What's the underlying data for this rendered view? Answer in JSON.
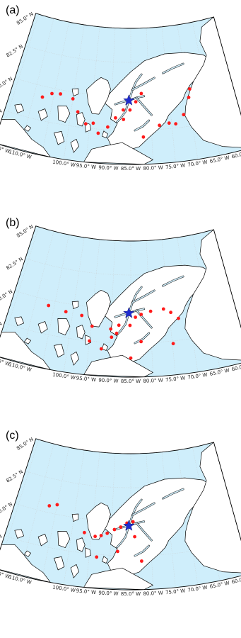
{
  "colors": {
    "ocean": "#cfeefb",
    "land": "#ffffff",
    "coast": "#000000",
    "grid": "#c9c9c9",
    "station": "#ff1a1a",
    "star": "#1f2ccf"
  },
  "labels": {
    "lat_ticks": [
      "85.0° N",
      "82.5° N",
      "80.0° N",
      "77.5° N",
      "75.0° N"
    ],
    "lon_ticks": [
      "115.0° W",
      "110.0° W",
      "100.0° W",
      "95.0° W",
      "90.0° W",
      "85.0° W",
      "80.0° W",
      "75.0° W",
      "70.0° W",
      "65.0° W",
      "60.0° W"
    ]
  },
  "panels": [
    {
      "label": "(a)",
      "star": {
        "lon": -85.5,
        "lat": 79.7
      },
      "stations": [
        {
          "lon": -107.8,
          "lat": 79.2
        },
        {
          "lon": -105.6,
          "lat": 79.6
        },
        {
          "lon": -103.4,
          "lat": 79.7
        },
        {
          "lon": -100.0,
          "lat": 79.5
        },
        {
          "lon": -98.3,
          "lat": 78.6
        },
        {
          "lon": -96.0,
          "lat": 77.8
        },
        {
          "lon": -94.2,
          "lat": 77.9
        },
        {
          "lon": -92.8,
          "lat": 77.2
        },
        {
          "lon": -90.6,
          "lat": 77.7
        },
        {
          "lon": -88.8,
          "lat": 78.4
        },
        {
          "lon": -86.9,
          "lat": 79.0
        },
        {
          "lon": -85.2,
          "lat": 79.0
        },
        {
          "lon": -83.7,
          "lat": 79.6
        },
        {
          "lon": -82.2,
          "lat": 80.2
        },
        {
          "lon": -78.0,
          "lat": 77.8
        },
        {
          "lon": -75.6,
          "lat": 77.9
        },
        {
          "lon": -74.0,
          "lat": 77.8
        },
        {
          "lon": -71.8,
          "lat": 78.4
        },
        {
          "lon": -69.9,
          "lat": 79.6
        },
        {
          "lon": -69.3,
          "lat": 80.2
        },
        {
          "lon": -82.0,
          "lat": 77.0
        },
        {
          "lon": -86.8,
          "lat": 78.3
        }
      ]
    },
    {
      "label": "(b)",
      "star": {
        "lon": -85.5,
        "lat": 79.7
      },
      "stations": [
        {
          "lon": -106.5,
          "lat": 79.6
        },
        {
          "lon": -101.8,
          "lat": 79.4
        },
        {
          "lon": -97.6,
          "lat": 79.3
        },
        {
          "lon": -94.7,
          "lat": 78.6
        },
        {
          "lon": -95.0,
          "lat": 77.5
        },
        {
          "lon": -92.0,
          "lat": 77.0
        },
        {
          "lon": -89.7,
          "lat": 77.9
        },
        {
          "lon": -88.0,
          "lat": 78.8
        },
        {
          "lon": -85.2,
          "lat": 78.8
        },
        {
          "lon": -83.8,
          "lat": 79.4
        },
        {
          "lon": -82.3,
          "lat": 79.6
        },
        {
          "lon": -79.8,
          "lat": 79.8
        },
        {
          "lon": -76.4,
          "lat": 79.9
        },
        {
          "lon": -74.6,
          "lat": 79.6
        },
        {
          "lon": -72.8,
          "lat": 79.1
        },
        {
          "lon": -74.8,
          "lat": 77.3
        },
        {
          "lon": -82.5,
          "lat": 77.6
        },
        {
          "lon": -85.0,
          "lat": 76.4
        },
        {
          "lon": -88.5,
          "lat": 78.2
        },
        {
          "lon": -90.0,
          "lat": 78.5
        }
      ]
    },
    {
      "label": "(c)",
      "star": {
        "lon": -85.5,
        "lat": 79.7
      },
      "stations": [
        {
          "lon": -107.0,
          "lat": 80.5
        },
        {
          "lon": -105.0,
          "lat": 80.7
        },
        {
          "lon": -96.8,
          "lat": 79.0
        },
        {
          "lon": -94.0,
          "lat": 78.8
        },
        {
          "lon": -92.5,
          "lat": 78.9
        },
        {
          "lon": -91.0,
          "lat": 79.1
        },
        {
          "lon": -89.2,
          "lat": 79.4
        },
        {
          "lon": -87.6,
          "lat": 79.6
        },
        {
          "lon": -86.0,
          "lat": 79.9
        },
        {
          "lon": -84.4,
          "lat": 80.0
        },
        {
          "lon": -88.2,
          "lat": 77.8
        },
        {
          "lon": -93.2,
          "lat": 77.3
        },
        {
          "lon": -82.4,
          "lat": 77.1
        },
        {
          "lon": -84.0,
          "lat": 78.9
        }
      ]
    }
  ]
}
